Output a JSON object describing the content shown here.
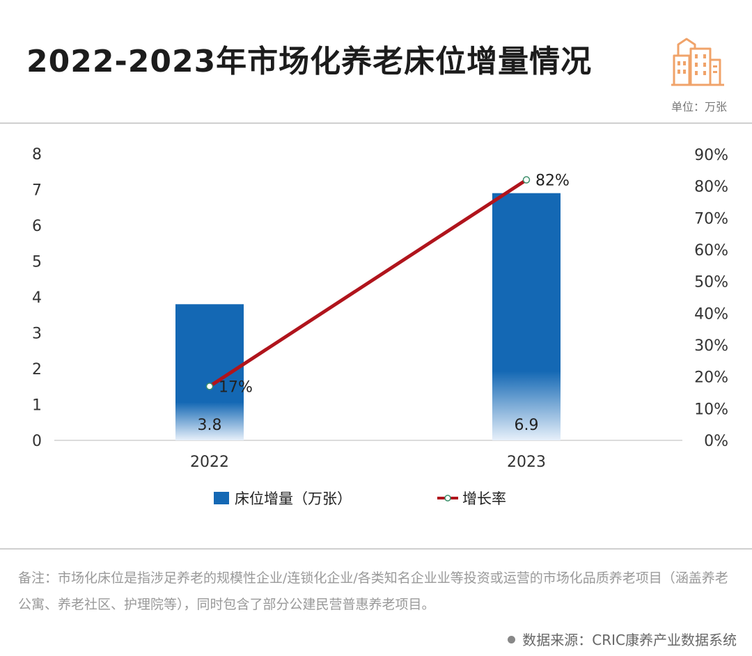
{
  "title": "2022-2023年市场化养老床位增量情况",
  "unit_label": "单位：万张",
  "logo_icon": "city-buildings-icon",
  "colors": {
    "bar": "#1468b4",
    "line": "#b0141c",
    "logo": "#f0a36a"
  },
  "chart_data": {
    "type": "bar",
    "categories": [
      "2022",
      "2023"
    ],
    "series": [
      {
        "name": "床位增量（万张）",
        "type": "bar",
        "axis": "left",
        "values": [
          3.8,
          6.9
        ],
        "labels": [
          "3.8",
          "6.9"
        ]
      },
      {
        "name": "增长率",
        "type": "line",
        "axis": "right",
        "values": [
          17,
          82
        ],
        "labels": [
          "17%",
          "82%"
        ]
      }
    ],
    "y_left": {
      "min": 0,
      "max": 8,
      "ticks": [
        "0",
        "1",
        "2",
        "3",
        "4",
        "5",
        "6",
        "7",
        "8"
      ]
    },
    "y_right": {
      "min": 0,
      "max": 90,
      "ticks": [
        "0%",
        "10%",
        "20%",
        "30%",
        "40%",
        "50%",
        "60%",
        "70%",
        "80%",
        "90%"
      ]
    },
    "grid": false,
    "legend_position": "bottom-center"
  },
  "note": "备注：市场化床位是指涉足养老的规模性企业/连锁化企业/各类知名企业业等投资或运营的市场化品质养老项目（涵盖养老公寓、养老社区、护理院等），同时包含了部分公建民营普惠养老项目。",
  "source": "数据来源：CRIC康养产业数据系统"
}
